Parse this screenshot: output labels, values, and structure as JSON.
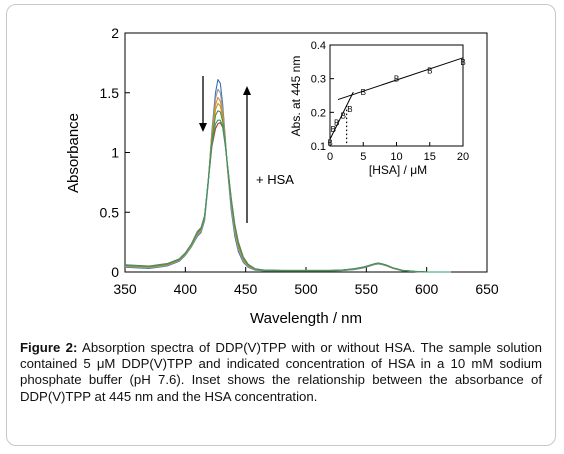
{
  "caption": {
    "label": "Figure 2:",
    "text": "Absorption spectra of DDP(V)TPP with or without HSA. The sample solution contained 5 μM DDP(V)TPP and indicated concentration of HSA in a 10 mM sodium phosphate buffer (pH 7.6). Inset shows the relationship between the absorbance of DDP(V)TPP at 445 nm and the HSA concentration."
  },
  "annotation": "+ HSA",
  "chart_data": [
    {
      "type": "line",
      "xlabel": "Wavelength / nm",
      "ylabel": "Absorbance",
      "xlim": [
        350,
        650
      ],
      "ylim": [
        0,
        2
      ],
      "xticks": [
        350,
        400,
        450,
        500,
        550,
        600,
        650
      ],
      "yticks": [
        0,
        0.5,
        1,
        1.5,
        2
      ],
      "ytick_labels": [
        "0",
        "0.5",
        "1",
        "1.5",
        "2"
      ],
      "x": [
        350,
        370,
        385,
        395,
        400,
        405,
        410,
        413,
        416,
        419,
        422,
        425,
        427,
        429,
        431,
        433,
        435,
        438,
        441,
        444,
        448,
        452,
        458,
        465,
        480,
        500,
        520,
        530,
        540,
        548,
        553,
        557,
        560,
        563,
        567,
        572,
        580,
        590,
        600,
        620
      ],
      "series": [
        {
          "color": "#3b6fb6",
          "values": [
            0.04,
            0.03,
            0.05,
            0.09,
            0.14,
            0.21,
            0.3,
            0.33,
            0.43,
            0.75,
            1.18,
            1.5,
            1.61,
            1.58,
            1.4,
            1.13,
            0.85,
            0.52,
            0.3,
            0.17,
            0.08,
            0.04,
            0.015,
            0.01,
            0.01,
            0.01,
            0.01,
            0.012,
            0.02,
            0.035,
            0.05,
            0.063,
            0.068,
            0.062,
            0.05,
            0.03,
            0.01,
            0.003,
            0.0,
            0.0
          ]
        },
        {
          "color": "#9a9a9a",
          "values": [
            0.045,
            0.035,
            0.055,
            0.095,
            0.145,
            0.215,
            0.31,
            0.34,
            0.44,
            0.76,
            1.16,
            1.45,
            1.53,
            1.5,
            1.36,
            1.12,
            0.86,
            0.55,
            0.33,
            0.19,
            0.09,
            0.045,
            0.018,
            0.012,
            0.01,
            0.01,
            0.01,
            0.013,
            0.022,
            0.037,
            0.052,
            0.064,
            0.069,
            0.063,
            0.051,
            0.031,
            0.011,
            0.004,
            0.0,
            0.0
          ]
        },
        {
          "color": "#e08a2a",
          "values": [
            0.05,
            0.04,
            0.06,
            0.1,
            0.15,
            0.22,
            0.32,
            0.35,
            0.45,
            0.77,
            1.14,
            1.4,
            1.46,
            1.43,
            1.32,
            1.1,
            0.86,
            0.57,
            0.35,
            0.21,
            0.1,
            0.05,
            0.02,
            0.013,
            0.011,
            0.011,
            0.011,
            0.014,
            0.024,
            0.039,
            0.054,
            0.066,
            0.071,
            0.065,
            0.053,
            0.032,
            0.012,
            0.004,
            0.0,
            0.0
          ]
        },
        {
          "color": "#b89a2c",
          "values": [
            0.052,
            0.042,
            0.062,
            0.1,
            0.15,
            0.225,
            0.325,
            0.355,
            0.455,
            0.77,
            1.12,
            1.36,
            1.41,
            1.39,
            1.29,
            1.09,
            0.87,
            0.58,
            0.37,
            0.22,
            0.11,
            0.055,
            0.022,
            0.014,
            0.012,
            0.012,
            0.012,
            0.015,
            0.025,
            0.04,
            0.055,
            0.067,
            0.072,
            0.066,
            0.054,
            0.033,
            0.013,
            0.005,
            0.0,
            0.0
          ]
        },
        {
          "color": "#5b8c3a",
          "values": [
            0.055,
            0.045,
            0.065,
            0.105,
            0.155,
            0.23,
            0.33,
            0.36,
            0.46,
            0.77,
            1.1,
            1.31,
            1.35,
            1.34,
            1.26,
            1.08,
            0.88,
            0.6,
            0.38,
            0.23,
            0.115,
            0.058,
            0.024,
            0.015,
            0.012,
            0.012,
            0.012,
            0.016,
            0.026,
            0.041,
            0.056,
            0.068,
            0.073,
            0.067,
            0.055,
            0.034,
            0.013,
            0.005,
            0.0,
            0.0
          ]
        },
        {
          "color": "#c0392b",
          "values": [
            0.06,
            0.05,
            0.07,
            0.11,
            0.16,
            0.235,
            0.34,
            0.37,
            0.47,
            0.76,
            1.05,
            1.2,
            1.24,
            1.25,
            1.21,
            1.06,
            0.89,
            0.62,
            0.4,
            0.25,
            0.125,
            0.065,
            0.027,
            0.017,
            0.013,
            0.013,
            0.013,
            0.017,
            0.028,
            0.043,
            0.058,
            0.07,
            0.075,
            0.069,
            0.057,
            0.035,
            0.014,
            0.006,
            0.0,
            0.0
          ]
        },
        {
          "color": "#2e9e6e",
          "values": [
            0.058,
            0.048,
            0.068,
            0.108,
            0.158,
            0.232,
            0.335,
            0.365,
            0.465,
            0.765,
            1.07,
            1.24,
            1.27,
            1.27,
            1.22,
            1.07,
            0.885,
            0.61,
            0.39,
            0.24,
            0.12,
            0.062,
            0.026,
            0.016,
            0.013,
            0.013,
            0.013,
            0.016,
            0.027,
            0.042,
            0.057,
            0.069,
            0.074,
            0.068,
            0.056,
            0.034,
            0.013,
            0.005,
            0.0,
            0.0
          ]
        }
      ]
    },
    {
      "type": "scatter",
      "xlabel": "[HSA] / μM",
      "ylabel": "Abs. at 445 nm",
      "xlim": [
        0,
        20
      ],
      "ylim": [
        0.1,
        0.4
      ],
      "xticks": [
        0,
        5,
        10,
        15,
        20
      ],
      "yticks": [
        0.1,
        0.2,
        0.3,
        0.4
      ],
      "ytick_labels": [
        "0.1",
        "0.2",
        "0.3",
        "0.4"
      ],
      "marker": "B",
      "points": [
        {
          "x": 0,
          "y": 0.11
        },
        {
          "x": 0.5,
          "y": 0.15
        },
        {
          "x": 1,
          "y": 0.17
        },
        {
          "x": 2,
          "y": 0.19
        },
        {
          "x": 3,
          "y": 0.21
        },
        {
          "x": 5,
          "y": 0.26
        },
        {
          "x": 10,
          "y": 0.3
        },
        {
          "x": 15,
          "y": 0.325
        },
        {
          "x": 20,
          "y": 0.35
        }
      ],
      "fit_lines": [
        {
          "x": [
            0,
            3.5
          ],
          "y": [
            0.12,
            0.26
          ]
        },
        {
          "x": [
            1.2,
            20
          ],
          "y": [
            0.238,
            0.362
          ]
        }
      ],
      "intersection_x": 2.5
    }
  ]
}
